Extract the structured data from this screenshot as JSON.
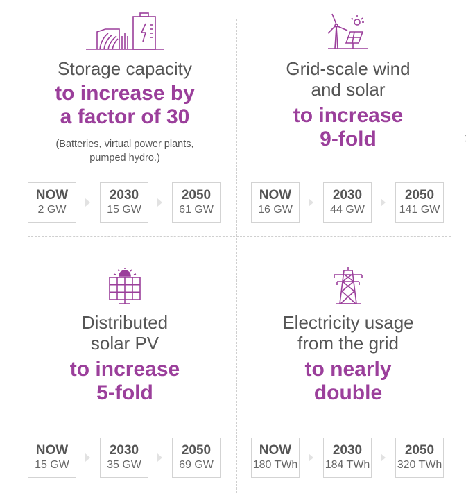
{
  "panels": [
    {
      "icon": "battery-dam-icon",
      "title": [
        "Storage capacity"
      ],
      "highlight": [
        "to increase by",
        "a factor of 30"
      ],
      "note": [
        "(Batteries, virtual power plants,",
        "pumped hydro.)"
      ],
      "stats": [
        {
          "label": "NOW",
          "value": "2 GW"
        },
        {
          "label": "2030",
          "value": "15 GW"
        },
        {
          "label": "2050",
          "value": "61 GW"
        }
      ]
    },
    {
      "icon": "wind-solar-icon",
      "title": [
        "Grid-scale wind",
        "and solar"
      ],
      "highlight": [
        "to increase",
        "9-fold"
      ],
      "stats": [
        {
          "label": "NOW",
          "value": "16 GW"
        },
        {
          "label": "2030",
          "value": "44 GW"
        },
        {
          "label": "2050",
          "value": "141 GW"
        }
      ]
    },
    {
      "icon": "solar-panel-icon",
      "title": [
        "Distributed",
        "solar PV"
      ],
      "highlight": [
        "to increase",
        "5-fold"
      ],
      "stats": [
        {
          "label": "NOW",
          "value": "15 GW"
        },
        {
          "label": "2030",
          "value": "35 GW"
        },
        {
          "label": "2050",
          "value": "69 GW"
        }
      ]
    },
    {
      "icon": "transmission-tower-icon",
      "title": [
        "Electricity usage",
        "from the grid"
      ],
      "highlight": [
        "to nearly",
        "double"
      ],
      "stats": [
        {
          "label": "NOW",
          "value": "180 TWh"
        },
        {
          "label": "2030",
          "value": "184 TWh"
        },
        {
          "label": "2050",
          "value": "320 TWh"
        }
      ]
    }
  ],
  "colors": {
    "accent": "#9b3f9b",
    "text": "#555555",
    "border": "#d3d3d3"
  }
}
